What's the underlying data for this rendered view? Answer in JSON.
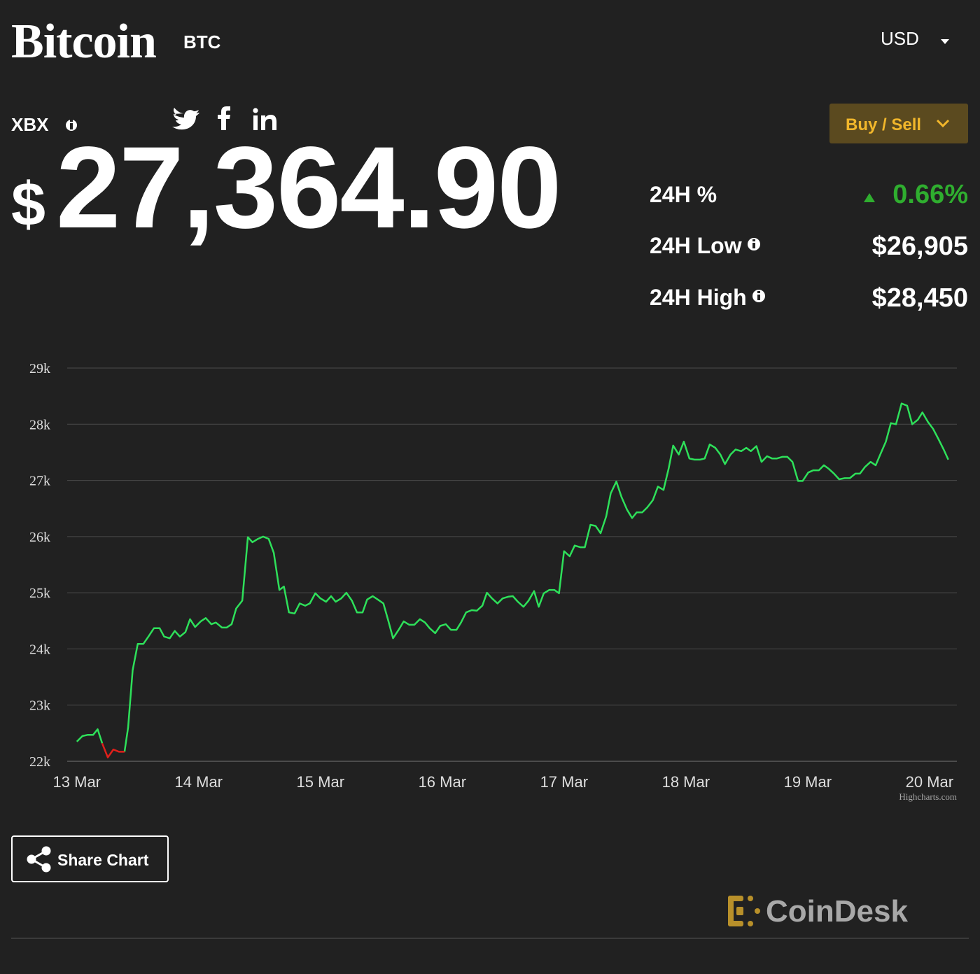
{
  "header": {
    "title": "Bitcoin",
    "ticker": "BTC",
    "currency": "USD"
  },
  "price": {
    "index": "XBX",
    "symbol": "$",
    "value": "27,364.90"
  },
  "buttons": {
    "buy_sell": "Buy / Sell",
    "share": "Share Chart"
  },
  "stats": [
    {
      "label": "24H %",
      "value": "0.66%"
    },
    {
      "label": "24H Low",
      "value": "$26,905"
    },
    {
      "label": "24H High",
      "value": "$28,450"
    }
  ],
  "chart_data": {
    "type": "line",
    "grid": true,
    "credit": "Highcharts.com",
    "xlim": [
      -1.9,
      173.4
    ],
    "xticks": [
      {
        "value": 0,
        "label": "13 Mar"
      },
      {
        "value": 24,
        "label": "14 Mar"
      },
      {
        "value": 48,
        "label": "15 Mar"
      },
      {
        "value": 72,
        "label": "16 Mar"
      },
      {
        "value": 96,
        "label": "17 Mar"
      },
      {
        "value": 120,
        "label": "18 Mar"
      },
      {
        "value": 144,
        "label": "19 Mar"
      },
      {
        "value": 168,
        "label": "20 Mar"
      }
    ],
    "ylim": [
      22000,
      29000
    ],
    "yticks": [
      {
        "value": 22000,
        "label": "22k"
      },
      {
        "value": 23000,
        "label": "23k"
      },
      {
        "value": 24000,
        "label": "24k"
      },
      {
        "value": 25000,
        "label": "25k"
      },
      {
        "value": 26000,
        "label": "26k"
      },
      {
        "value": 27000,
        "label": "27k"
      },
      {
        "value": 28000,
        "label": "28k"
      },
      {
        "value": 29000,
        "label": "29k"
      }
    ],
    "x": [
      0,
      1.1,
      2.1,
      3.2,
      4.1,
      5.0,
      6.1,
      7.2,
      8.3,
      9.4,
      10.1,
      11.0,
      12.0,
      13.1,
      14.1,
      15.2,
      16.3,
      17.2,
      18.3,
      19.3,
      20.3,
      21.4,
      22.3,
      23.3,
      24.4,
      25.4,
      26.5,
      27.4,
      28.6,
      29.5,
      30.5,
      31.4,
      32.6,
      33.7,
      34.6,
      35.7,
      36.7,
      37.8,
      38.8,
      39.9,
      40.8,
      41.8,
      42.9,
      43.9,
      45.0,
      45.9,
      47.0,
      48.0,
      49.1,
      50.1,
      51.0,
      52.1,
      53.1,
      54.2,
      55.2,
      56.3,
      57.2,
      58.3,
      59.3,
      60.4,
      61.4,
      62.3,
      63.4,
      64.4,
      65.5,
      66.5,
      67.6,
      68.6,
      69.5,
      70.6,
      71.6,
      72.7,
      73.7,
      74.8,
      75.7,
      76.7,
      77.8,
      78.8,
      79.9,
      80.8,
      81.8,
      82.9,
      83.9,
      85.0,
      85.9,
      86.9,
      88.0,
      89.0,
      90.1,
      91.0,
      92.0,
      93.1,
      94.1,
      95.0,
      96.0,
      97.1,
      98.1,
      99.2,
      100.1,
      101.2,
      102.2,
      103.2,
      104.3,
      105.2,
      106.3,
      107.3,
      108.4,
      109.4,
      110.3,
      111.4,
      112.4,
      113.5,
      114.5,
      115.6,
      116.6,
      117.5,
      118.6,
      119.6,
      120.7,
      121.7,
      122.8,
      123.7,
      124.7,
      125.8,
      126.8,
      127.7,
      128.8,
      129.8,
      130.9,
      131.9,
      132.8,
      133.9,
      134.9,
      136.0,
      137.0,
      137.9,
      139.0,
      140.0,
      141.0,
      142.1,
      143.0,
      144.1,
      145.1,
      146.2,
      147.2,
      148.1,
      149.2,
      150.2,
      151.3,
      152.3,
      153.4,
      154.3,
      155.3,
      156.4,
      157.4,
      158.3,
      159.4,
      160.4,
      161.4,
      162.5,
      163.6,
      164.6,
      165.7,
      166.6,
      167.7,
      168.7,
      169.8,
      170.8,
      171.7
    ],
    "series": [
      {
        "color": "#2ee05a",
        "values": [
          22350,
          22450,
          22470,
          22470,
          22570,
          22320,
          null,
          null,
          null,
          22170,
          22600,
          23620,
          24090,
          24090,
          24220,
          24370,
          24370,
          24220,
          24190,
          24320,
          24220,
          24300,
          24530,
          24390,
          24490,
          24550,
          24440,
          24470,
          24380,
          24380,
          24440,
          24720,
          24860,
          25990,
          25900,
          25960,
          26000,
          25960,
          25710,
          25050,
          25110,
          24650,
          24630,
          24810,
          24770,
          24810,
          24990,
          24900,
          24840,
          24940,
          24840,
          24900,
          25000,
          24860,
          24650,
          24650,
          24880,
          24940,
          24880,
          24810,
          24490,
          24190,
          24340,
          24490,
          24430,
          24430,
          24530,
          24470,
          24370,
          24280,
          24410,
          24440,
          24340,
          24340,
          24470,
          24650,
          24690,
          24680,
          24770,
          25000,
          24900,
          24810,
          24900,
          24930,
          24940,
          24840,
          24750,
          24860,
          25030,
          24750,
          24990,
          25050,
          25050,
          24990,
          25740,
          25650,
          25840,
          25810,
          25810,
          26210,
          26190,
          26060,
          26360,
          26770,
          26980,
          26710,
          26480,
          26330,
          26430,
          26430,
          26520,
          26650,
          26890,
          26830,
          27210,
          27620,
          27460,
          27690,
          27390,
          27370,
          27370,
          27390,
          27640,
          27580,
          27460,
          27290,
          27460,
          27550,
          27520,
          27580,
          27520,
          27610,
          27330,
          27430,
          27390,
          27390,
          27420,
          27420,
          27330,
          26990,
          26990,
          27140,
          27180,
          27180,
          27270,
          27210,
          27120,
          27020,
          27040,
          27040,
          27120,
          27120,
          27240,
          27330,
          27270,
          27460,
          27690,
          28020,
          28000,
          28370,
          28330,
          28000,
          28080,
          28210,
          28040,
          27920,
          27730,
          27550,
          27370
        ]
      },
      {
        "color": "#e0201b",
        "x": [
          5.0,
          6.1,
          7.2,
          8.3,
          9.4
        ],
        "values": [
          22320,
          22070,
          22210,
          22170,
          22170
        ]
      }
    ]
  },
  "footer": {
    "brand": "CoinDesk"
  }
}
